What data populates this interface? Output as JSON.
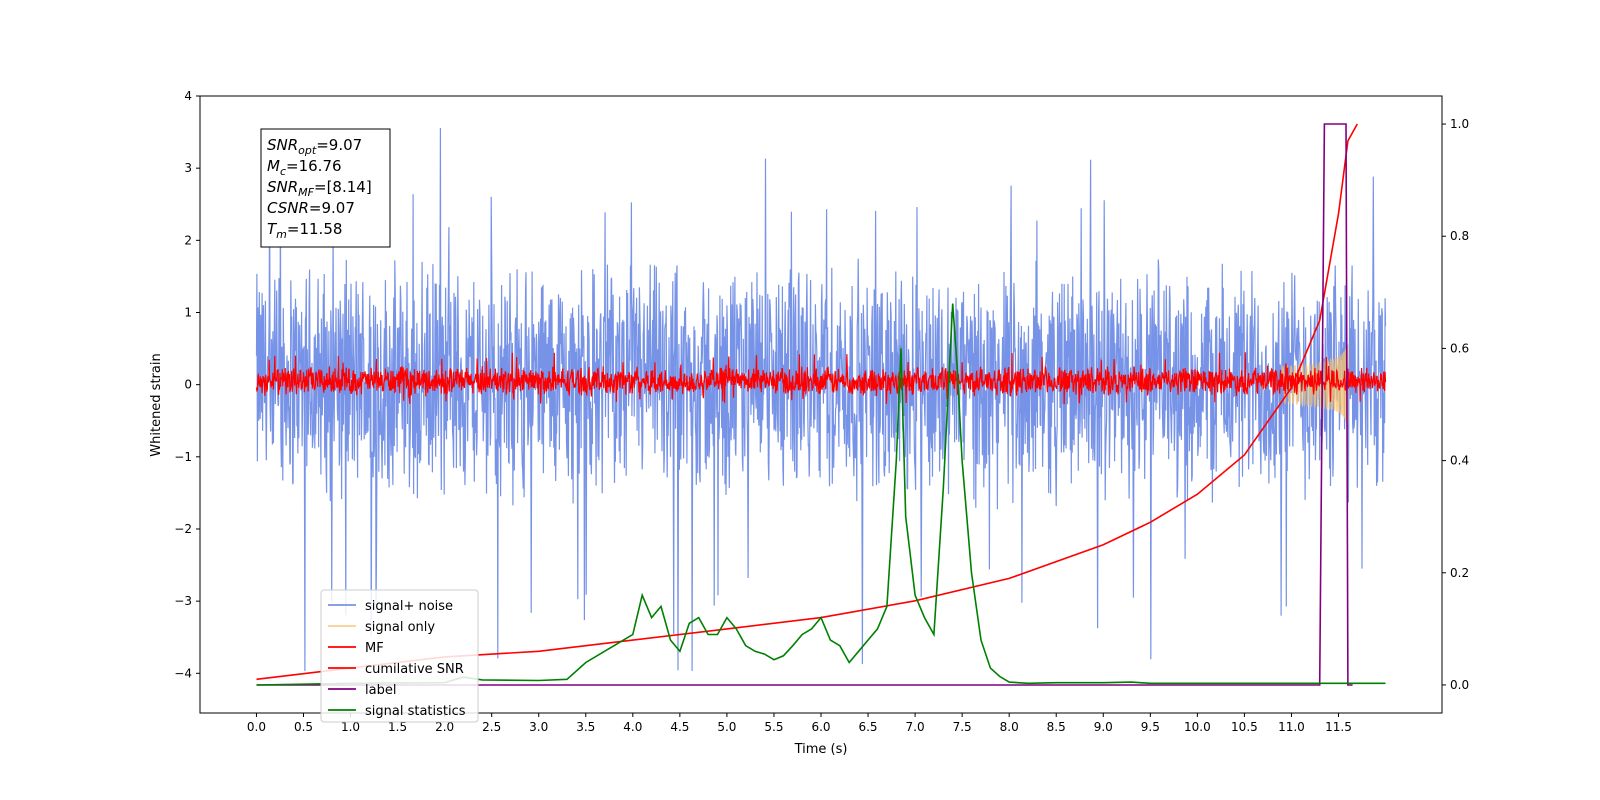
{
  "chart_data": {
    "type": "line",
    "xlabel": "Time (s)",
    "ylabel_left": "Whitened strain",
    "ylabel_right": "",
    "xlim": [
      -0.6,
      12.6
    ],
    "ylim_left": [
      -4.55,
      4.0
    ],
    "ylim_right": [
      -0.05,
      1.05
    ],
    "x_ticks": [
      "0.0",
      "0.5",
      "1.0",
      "1.5",
      "2.0",
      "2.5",
      "3.0",
      "3.5",
      "4.0",
      "4.5",
      "5.0",
      "5.5",
      "6.0",
      "6.5",
      "7.0",
      "7.5",
      "8.0",
      "8.5",
      "9.0",
      "9.5",
      "10.0",
      "10.5",
      "11.0",
      "11.5"
    ],
    "x_tick_values": [
      0,
      0.5,
      1,
      1.5,
      2,
      2.5,
      3,
      3.5,
      4,
      4.5,
      5,
      5.5,
      6,
      6.5,
      7,
      7.5,
      8,
      8.5,
      9,
      9.5,
      10,
      10.5,
      11,
      11.5
    ],
    "y_ticks_left": [
      "4",
      "3",
      "2",
      "1",
      "0",
      "−1",
      "−2",
      "−3",
      "−4"
    ],
    "y_tick_values_left": [
      4,
      3,
      2,
      1,
      0,
      -1,
      -2,
      -3,
      -4
    ],
    "y_ticks_right": [
      "1.0",
      "0.8",
      "0.6",
      "0.4",
      "0.2",
      "0.0"
    ],
    "y_tick_values_right": [
      1.0,
      0.8,
      0.6,
      0.4,
      0.2,
      0.0
    ],
    "grid": false,
    "legend_position": "lower-left",
    "info_box": {
      "lines": [
        {
          "main": "SNR",
          "sub": "opt",
          "value": "=9.07"
        },
        {
          "main": "M",
          "sub": "c",
          "value": "=16.76"
        },
        {
          "main": "SNR",
          "sub": "MF",
          "value": "=[8.14]"
        },
        {
          "main": "CSNR",
          "sub": "",
          "value": "=9.07"
        },
        {
          "main": "T",
          "sub": "m",
          "value": "=11.58"
        }
      ]
    },
    "series": [
      {
        "name": "signal+ noise",
        "axis": "left",
        "color": "#7793e7",
        "kind": "noise",
        "x_range": [
          0.0,
          12.0
        ],
        "typical_range": [
          -1.6,
          1.7
        ],
        "extreme_range": [
          -4.0,
          3.6
        ]
      },
      {
        "name": "signal only",
        "axis": "left",
        "color": "#f5c26b",
        "kind": "chirp",
        "x_range": [
          10.9,
          11.6
        ],
        "peak_amplitude": 0.55
      },
      {
        "name": "MF",
        "axis": "left",
        "color": "#ff0000",
        "kind": "noise",
        "x_range": [
          0.0,
          12.0
        ],
        "typical_range": [
          -0.15,
          0.25
        ],
        "extreme_range": [
          -0.3,
          0.45
        ]
      },
      {
        "name": "cumilative SNR",
        "axis": "right",
        "color": "#ff0000",
        "kind": "line",
        "x": [
          0.0,
          1.0,
          2.0,
          3.0,
          4.0,
          5.0,
          6.0,
          7.0,
          8.0,
          9.0,
          9.5,
          10.0,
          10.5,
          11.0,
          11.3,
          11.5,
          11.6,
          11.7
        ],
        "y": [
          0.01,
          0.03,
          0.05,
          0.06,
          0.08,
          0.1,
          0.12,
          0.15,
          0.19,
          0.25,
          0.29,
          0.34,
          0.41,
          0.53,
          0.65,
          0.84,
          0.97,
          1.0
        ]
      },
      {
        "name": "label",
        "axis": "right",
        "color": "#800080",
        "kind": "line",
        "x": [
          0.0,
          11.3,
          11.35,
          11.58,
          11.6,
          11.62,
          11.65
        ],
        "y": [
          0.0,
          0.0,
          1.0,
          1.0,
          0.0,
          0.0,
          0.0
        ]
      },
      {
        "name": "signal statistics",
        "axis": "right",
        "color": "#008000",
        "kind": "line",
        "x": [
          0.0,
          1.0,
          2.0,
          2.2,
          2.4,
          3.0,
          3.3,
          3.5,
          3.8,
          4.0,
          4.1,
          4.2,
          4.3,
          4.4,
          4.5,
          4.6,
          4.7,
          4.8,
          4.9,
          5.0,
          5.1,
          5.2,
          5.3,
          5.4,
          5.5,
          5.6,
          5.7,
          5.8,
          5.9,
          6.0,
          6.1,
          6.2,
          6.3,
          6.4,
          6.5,
          6.6,
          6.7,
          6.8,
          6.85,
          6.9,
          7.0,
          7.1,
          7.2,
          7.3,
          7.4,
          7.45,
          7.5,
          7.6,
          7.7,
          7.8,
          7.9,
          8.0,
          8.2,
          8.5,
          9.0,
          9.3,
          9.5,
          10.0,
          11.0,
          11.5,
          12.0
        ],
        "y": [
          0.0,
          0.003,
          0.004,
          0.014,
          0.009,
          0.008,
          0.01,
          0.04,
          0.07,
          0.09,
          0.16,
          0.12,
          0.14,
          0.08,
          0.06,
          0.11,
          0.12,
          0.09,
          0.09,
          0.12,
          0.1,
          0.07,
          0.06,
          0.055,
          0.045,
          0.052,
          0.07,
          0.09,
          0.1,
          0.12,
          0.08,
          0.07,
          0.04,
          0.06,
          0.08,
          0.1,
          0.14,
          0.4,
          0.6,
          0.3,
          0.16,
          0.12,
          0.09,
          0.35,
          0.68,
          0.56,
          0.4,
          0.2,
          0.08,
          0.03,
          0.015,
          0.005,
          0.003,
          0.004,
          0.004,
          0.005,
          0.003,
          0.003,
          0.003,
          0.003,
          0.003
        ]
      }
    ]
  }
}
